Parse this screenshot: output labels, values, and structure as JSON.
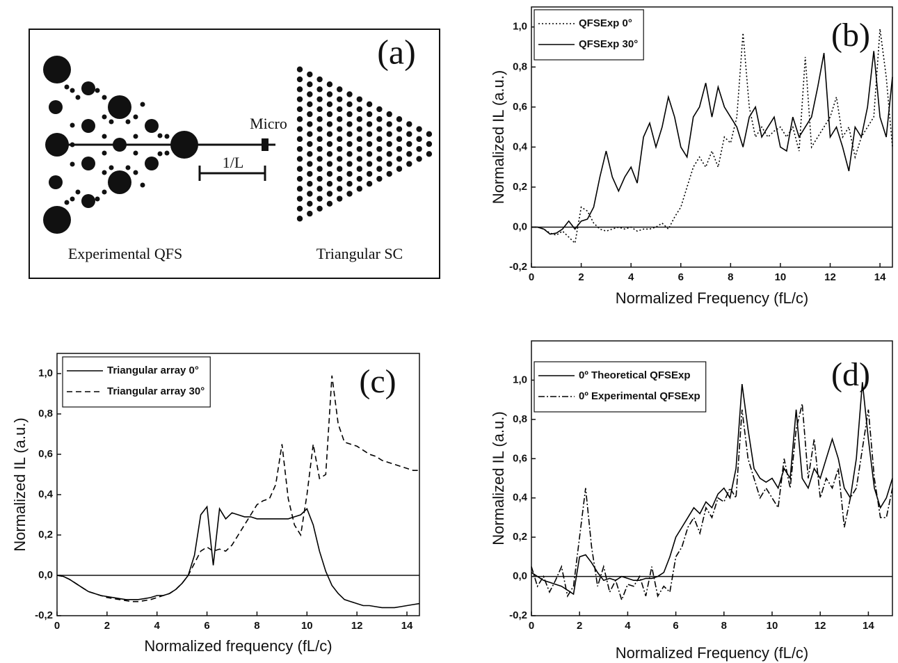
{
  "diagram": {
    "label": "(a)",
    "micro": "Micro",
    "scale": "1/L",
    "left_caption": "Experimental QFS",
    "right_caption": "Triangular SC"
  },
  "chart_data": [
    {
      "type": "line",
      "label": "(b)",
      "x_label": "Normalized Frequency (fL/c)",
      "y_label": "Normalized IL (a.u.)",
      "xlim": [
        0,
        14.5
      ],
      "ylim": [
        -0.2,
        1.1
      ],
      "xticks": [
        0,
        2,
        4,
        6,
        8,
        10,
        12,
        14
      ],
      "yticks": [
        {
          "value": -0.2,
          "label": "-0,2"
        },
        {
          "value": 0,
          "label": "0,0"
        },
        {
          "value": 0.2,
          "label": "0,2"
        },
        {
          "value": 0.4,
          "label": "0,4"
        },
        {
          "value": 0.6,
          "label": "0,6"
        },
        {
          "value": 0.8,
          "label": "0,8"
        },
        {
          "value": 1.0,
          "label": "1,0"
        }
      ],
      "zero_line": true,
      "legend": "upper left",
      "x": [
        0,
        0.25,
        0.5,
        0.75,
        1,
        1.25,
        1.5,
        1.75,
        2,
        2.25,
        2.5,
        2.75,
        3,
        3.25,
        3.5,
        3.75,
        4,
        4.25,
        4.5,
        4.75,
        5,
        5.25,
        5.5,
        5.75,
        6,
        6.25,
        6.5,
        6.75,
        7,
        7.25,
        7.5,
        7.75,
        8,
        8.25,
        8.5,
        8.75,
        9,
        9.25,
        9.5,
        9.75,
        10,
        10.25,
        10.5,
        10.75,
        11,
        11.25,
        11.5,
        11.75,
        12,
        12.25,
        12.5,
        12.75,
        13,
        13.25,
        13.5,
        13.75,
        14,
        14.25,
        14.5
      ],
      "series": [
        {
          "name": "QFSExp 0°",
          "color": "#000000",
          "dash": "dotted",
          "values": [
            0,
            0,
            -0.01,
            -0.03,
            -0.04,
            -0.02,
            -0.05,
            -0.08,
            0.1,
            0.08,
            0.02,
            -0.01,
            -0.02,
            -0.01,
            0,
            -0.01,
            0,
            -0.02,
            -0.01,
            -0.01,
            0,
            0.02,
            -0.01,
            0.05,
            0.1,
            0.2,
            0.3,
            0.35,
            0.3,
            0.38,
            0.3,
            0.45,
            0.42,
            0.55,
            0.97,
            0.6,
            0.45,
            0.5,
            0.45,
            0.48,
            0.5,
            0.45,
            0.5,
            0.38,
            0.85,
            0.4,
            0.45,
            0.5,
            0.55,
            0.65,
            0.45,
            0.5,
            0.35,
            0.45,
            0.5,
            0.55,
            0.99,
            0.75,
            0.4
          ]
        },
        {
          "name": "QFSExp 30°",
          "color": "#000000",
          "dash": "solid",
          "values": [
            0,
            0,
            -0.01,
            -0.035,
            -0.03,
            -0.01,
            0.03,
            -0.01,
            0.03,
            0.04,
            0.1,
            0.25,
            0.38,
            0.25,
            0.18,
            0.25,
            0.3,
            0.22,
            0.45,
            0.52,
            0.4,
            0.5,
            0.65,
            0.55,
            0.4,
            0.35,
            0.55,
            0.6,
            0.72,
            0.55,
            0.7,
            0.6,
            0.55,
            0.5,
            0.4,
            0.55,
            0.6,
            0.45,
            0.5,
            0.55,
            0.4,
            0.38,
            0.55,
            0.45,
            0.5,
            0.55,
            0.7,
            0.87,
            0.45,
            0.5,
            0.4,
            0.28,
            0.5,
            0.45,
            0.6,
            0.88,
            0.55,
            0.45,
            0.75
          ]
        }
      ]
    },
    {
      "type": "line",
      "label": "(c)",
      "x_label": "Normalized frequency (fL/c)",
      "y_label": "Normalized IL (a.u.)",
      "xlim": [
        0,
        14.5
      ],
      "ylim": [
        -0.2,
        1.1
      ],
      "xticks": [
        0,
        2,
        4,
        6,
        8,
        10,
        12,
        14
      ],
      "yticks": [
        {
          "value": -0.2,
          "label": "-0,2"
        },
        {
          "value": 0,
          "label": "0,0"
        },
        {
          "value": 0.2,
          "label": "0,2"
        },
        {
          "value": 0.4,
          "label": "0,4"
        },
        {
          "value": 0.6,
          "label": "0,6"
        },
        {
          "value": 0.8,
          "label": "0,8"
        },
        {
          "value": 1.0,
          "label": "1,0"
        }
      ],
      "zero_line": true,
      "legend": "upper left",
      "x": [
        0,
        0.25,
        0.5,
        0.75,
        1,
        1.25,
        1.5,
        1.75,
        2,
        2.25,
        2.5,
        2.75,
        3,
        3.25,
        3.5,
        3.75,
        4,
        4.25,
        4.5,
        4.75,
        5,
        5.25,
        5.5,
        5.75,
        6,
        6.25,
        6.5,
        6.75,
        7,
        7.25,
        7.5,
        7.75,
        8,
        8.25,
        8.5,
        8.75,
        9,
        9.25,
        9.5,
        9.75,
        10,
        10.25,
        10.5,
        10.75,
        11,
        11.25,
        11.5,
        11.75,
        12,
        12.25,
        12.5,
        12.75,
        13,
        13.25,
        13.5,
        13.75,
        14,
        14.25,
        14.5
      ],
      "series": [
        {
          "name": "Triangular array 0°",
          "color": "#000000",
          "dash": "solid",
          "values": [
            0,
            -0.005,
            -0.02,
            -0.04,
            -0.06,
            -0.08,
            -0.09,
            -0.1,
            -0.105,
            -0.11,
            -0.115,
            -0.12,
            -0.12,
            -0.12,
            -0.115,
            -0.11,
            -0.1,
            -0.1,
            -0.09,
            -0.07,
            -0.04,
            0.0,
            0.1,
            0.3,
            0.34,
            0.05,
            0.33,
            0.28,
            0.31,
            0.3,
            0.29,
            0.29,
            0.28,
            0.28,
            0.28,
            0.28,
            0.28,
            0.28,
            0.29,
            0.3,
            0.33,
            0.25,
            0.12,
            0.02,
            -0.05,
            -0.09,
            -0.12,
            -0.13,
            -0.14,
            -0.15,
            -0.15,
            -0.155,
            -0.16,
            -0.16,
            -0.16,
            -0.155,
            -0.15,
            -0.145,
            -0.14
          ]
        },
        {
          "name": "Triangular array 30°",
          "color": "#000000",
          "dash": "dashed",
          "values": [
            0,
            -0.005,
            -0.02,
            -0.04,
            -0.06,
            -0.08,
            -0.09,
            -0.1,
            -0.11,
            -0.115,
            -0.12,
            -0.125,
            -0.13,
            -0.13,
            -0.125,
            -0.12,
            -0.11,
            -0.1,
            -0.09,
            -0.07,
            -0.04,
            0.0,
            0.06,
            0.12,
            0.14,
            0.12,
            0.13,
            0.12,
            0.15,
            0.2,
            0.25,
            0.3,
            0.35,
            0.37,
            0.38,
            0.45,
            0.65,
            0.38,
            0.25,
            0.2,
            0.4,
            0.65,
            0.48,
            0.5,
            0.99,
            0.75,
            0.66,
            0.65,
            0.64,
            0.62,
            0.6,
            0.59,
            0.57,
            0.56,
            0.55,
            0.54,
            0.53,
            0.52,
            0.52
          ]
        }
      ]
    },
    {
      "type": "line",
      "label": "(d)",
      "x_label": "Normalized Frequency (fL/c)",
      "y_label": "Normalized IL (a.u.)",
      "xlim": [
        0,
        15
      ],
      "ylim": [
        -0.2,
        1.2
      ],
      "xticks": [
        0,
        2,
        4,
        6,
        8,
        10,
        12,
        14
      ],
      "yticks": [
        {
          "value": -0.2,
          "label": "-0,2"
        },
        {
          "value": 0,
          "label": "0,0"
        },
        {
          "value": 0.2,
          "label": "0,2"
        },
        {
          "value": 0.4,
          "label": "0,4"
        },
        {
          "value": 0.6,
          "label": "0,6"
        },
        {
          "value": 0.8,
          "label": "0,8"
        },
        {
          "value": 1.0,
          "label": "1,0"
        }
      ],
      "zero_line": true,
      "legend": "upper left",
      "x": [
        0,
        0.25,
        0.5,
        0.75,
        1,
        1.25,
        1.5,
        1.75,
        2,
        2.25,
        2.5,
        2.75,
        3,
        3.25,
        3.5,
        3.75,
        4,
        4.25,
        4.5,
        4.75,
        5,
        5.25,
        5.5,
        5.75,
        6,
        6.25,
        6.5,
        6.75,
        7,
        7.25,
        7.5,
        7.75,
        8,
        8.25,
        8.5,
        8.75,
        9,
        9.25,
        9.5,
        9.75,
        10,
        10.25,
        10.5,
        10.75,
        11,
        11.25,
        11.5,
        11.75,
        12,
        12.25,
        12.5,
        12.75,
        13,
        13.25,
        13.5,
        13.75,
        14,
        14.25,
        14.5,
        14.75,
        15
      ],
      "series": [
        {
          "name": "0º Theoretical QFSExp",
          "color": "#000000",
          "dash": "solid",
          "values": [
            0.02,
            0,
            -0.02,
            -0.03,
            -0.04,
            -0.05,
            -0.07,
            -0.09,
            0.1,
            0.11,
            0.07,
            0.02,
            -0.02,
            -0.01,
            -0.02,
            0,
            -0.01,
            -0.02,
            -0.02,
            -0.01,
            -0.01,
            0,
            0.02,
            0.1,
            0.2,
            0.25,
            0.3,
            0.35,
            0.32,
            0.38,
            0.35,
            0.42,
            0.45,
            0.4,
            0.55,
            0.98,
            0.75,
            0.55,
            0.5,
            0.48,
            0.5,
            0.45,
            0.55,
            0.5,
            0.85,
            0.5,
            0.45,
            0.55,
            0.5,
            0.6,
            0.7,
            0.6,
            0.45,
            0.4,
            0.6,
            0.99,
            0.7,
            0.45,
            0.35,
            0.4,
            0.5
          ]
        },
        {
          "name": "0º Experimental QFSExp",
          "color": "#000000",
          "dash": "dashdot",
          "values": [
            0.05,
            -0.05,
            0,
            -0.08,
            -0.02,
            0.05,
            -0.1,
            -0.05,
            0.2,
            0.45,
            0.15,
            -0.05,
            0.05,
            -0.08,
            -0.02,
            -0.12,
            -0.04,
            -0.05,
            0,
            -0.1,
            0.05,
            -0.1,
            -0.05,
            -0.08,
            0.1,
            0.15,
            0.25,
            0.3,
            0.22,
            0.35,
            0.3,
            0.4,
            0.38,
            0.45,
            0.4,
            0.85,
            0.6,
            0.5,
            0.4,
            0.45,
            0.4,
            0.35,
            0.6,
            0.45,
            0.75,
            0.88,
            0.5,
            0.7,
            0.4,
            0.5,
            0.45,
            0.55,
            0.25,
            0.4,
            0.45,
            0.65,
            0.85,
            0.5,
            0.3,
            0.3,
            0.45
          ]
        }
      ]
    }
  ]
}
